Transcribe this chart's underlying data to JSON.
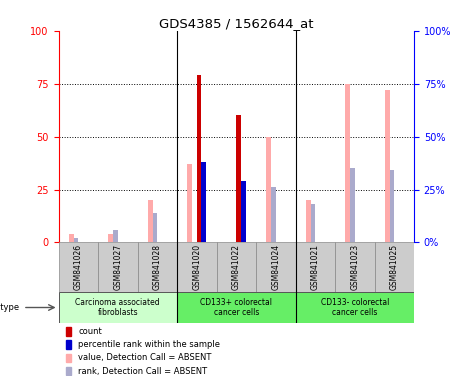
{
  "title": "GDS4385 / 1562644_at",
  "samples": [
    "GSM841026",
    "GSM841027",
    "GSM841028",
    "GSM841020",
    "GSM841022",
    "GSM841024",
    "GSM841021",
    "GSM841023",
    "GSM841025"
  ],
  "count": [
    0,
    0,
    0,
    79,
    60,
    0,
    0,
    0,
    0
  ],
  "percentile_rank": [
    0,
    0,
    0,
    38,
    29,
    0,
    0,
    0,
    0
  ],
  "value_absent": [
    4,
    4,
    20,
    37,
    0,
    50,
    20,
    75,
    72
  ],
  "rank_absent": [
    2,
    6,
    14,
    0,
    0,
    26,
    18,
    35,
    34
  ],
  "ylim": [
    0,
    100
  ],
  "yticks": [
    0,
    25,
    50,
    75,
    100
  ],
  "bar_width": 0.12,
  "count_color": "#cc0000",
  "percentile_color": "#0000cc",
  "value_absent_color": "#ffaaaa",
  "rank_absent_color": "#aaaacc",
  "group_ranges": [
    [
      0,
      2
    ],
    [
      3,
      5
    ],
    [
      6,
      8
    ]
  ],
  "group_colors": [
    "#ccffcc",
    "#66ee66",
    "#66ee66"
  ],
  "group_names": [
    "Carcinoma associated\nfibroblasts",
    "CD133+ colorectal\ncancer cells",
    "CD133- colorectal\ncancer cells"
  ],
  "legend_items": [
    [
      "#cc0000",
      "count"
    ],
    [
      "#0000cc",
      "percentile rank within the sample"
    ],
    [
      "#ffaaaa",
      "value, Detection Call = ABSENT"
    ],
    [
      "#aaaacc",
      "rank, Detection Call = ABSENT"
    ]
  ]
}
